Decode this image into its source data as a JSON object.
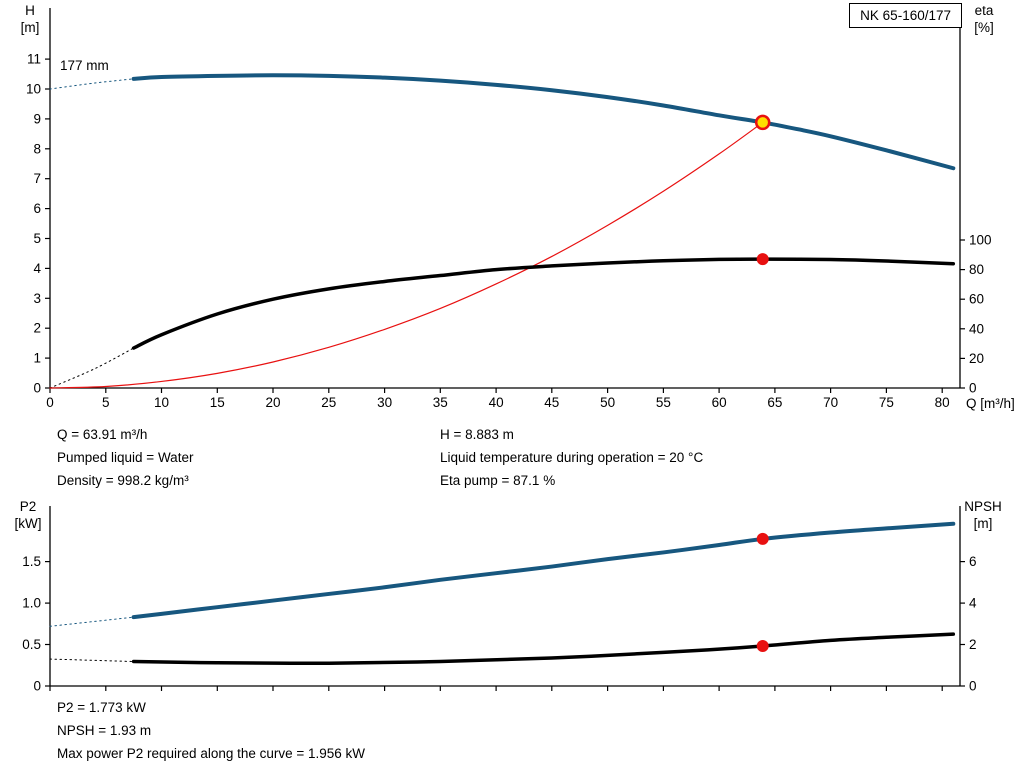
{
  "title_box": {
    "label": "NK 65-160/177"
  },
  "colors": {
    "curve_blue": "#17577f",
    "curve_black": "#000000",
    "curve_red": "#e81111",
    "duty_yellow": "#ffdf00",
    "duty_red": "#e81111",
    "axis": "#000000"
  },
  "info_top": {
    "col1": [
      "Q = 63.91 m³/h",
      "Pumped liquid = Water",
      "Density = 998.2 kg/m³"
    ],
    "col2": [
      "H = 8.883 m",
      "Liquid temperature during operation = 20 °C",
      "Eta pump = 87.1 %"
    ]
  },
  "info_bottom": [
    "P2 = 1.773 kW",
    "NPSH = 1.93 m",
    "Max power P2 required along the curve = 1.956 kW"
  ],
  "chart_data": [
    {
      "type": "line",
      "name": "head-efficiency-chart",
      "title": "NK 65-160/177",
      "annotation": "177 mm",
      "x": {
        "label": "Q [m³/h]",
        "min": 0,
        "max": 81.6,
        "ticks": [
          0,
          5,
          10,
          15,
          20,
          25,
          30,
          35,
          40,
          45,
          50,
          55,
          60,
          65,
          70,
          75,
          80
        ],
        "show_labels": true
      },
      "left": {
        "label_lines": [
          "H",
          "[m]"
        ],
        "min": 0,
        "max": 12.71,
        "ticks": [
          0,
          1,
          2,
          3,
          4,
          5,
          6,
          7,
          8,
          9,
          10,
          11
        ]
      },
      "right": {
        "label_lines": [
          "eta",
          "[%]"
        ],
        "min": 0,
        "max": 256.8,
        "ticks": [
          0,
          20,
          40,
          60,
          80,
          100
        ]
      },
      "series": [
        {
          "name": "head-curve-dashed-lead",
          "axis": "left",
          "color_key": "curve_blue",
          "width": 1,
          "dash": "1.5 3.5",
          "x": [
            0,
            4,
            7.5
          ],
          "y": [
            10.0,
            10.2,
            10.34
          ]
        },
        {
          "name": "eta-curve-dashed-lead",
          "axis": "right",
          "color_key": "curve_black",
          "width": 1,
          "dash": "1.5 3.5",
          "x": [
            0,
            4,
            7.5
          ],
          "y": [
            0,
            13,
            27
          ]
        },
        {
          "name": "system-curve",
          "axis": "left",
          "color_key": "curve_red",
          "width": 1.2,
          "x": [
            0,
            5,
            10,
            15,
            20,
            25,
            30,
            35,
            40,
            45,
            50,
            55,
            60,
            63.91
          ],
          "y": [
            0,
            0.05,
            0.22,
            0.49,
            0.87,
            1.36,
            1.96,
            2.66,
            3.48,
            4.4,
            5.44,
            6.58,
            7.83,
            8.883
          ]
        },
        {
          "name": "eta-curve",
          "axis": "right",
          "color_key": "curve_black",
          "width": 3.5,
          "x": [
            7.5,
            10,
            15,
            20,
            25,
            30,
            35,
            40,
            45,
            50,
            55,
            60,
            63.91,
            70,
            75,
            81
          ],
          "y": [
            27,
            36,
            50,
            60,
            67,
            72,
            76,
            80,
            82.5,
            84.5,
            86,
            86.9,
            87.1,
            86.8,
            85.8,
            84
          ]
        },
        {
          "name": "head-curve",
          "axis": "left",
          "color_key": "curve_blue",
          "width": 4,
          "x": [
            7.5,
            10,
            15,
            20,
            25,
            30,
            35,
            40,
            45,
            50,
            55,
            60,
            63.91,
            67,
            70,
            75,
            81
          ],
          "y": [
            10.34,
            10.4,
            10.44,
            10.46,
            10.44,
            10.38,
            10.28,
            10.14,
            9.96,
            9.73,
            9.45,
            9.12,
            8.883,
            8.66,
            8.42,
            7.95,
            7.35
          ]
        }
      ],
      "points": [
        {
          "name": "duty-point-head",
          "axis": "left",
          "x": 63.91,
          "y": 8.883,
          "r": 6.5,
          "fill_key": "duty_yellow",
          "stroke_key": "duty_red",
          "stroke_width": 2.5
        },
        {
          "name": "duty-point-eta",
          "axis": "right",
          "x": 63.91,
          "y": 87.1,
          "r": 5.5,
          "fill_key": "duty_red",
          "stroke_key": "duty_red",
          "stroke_width": 1
        }
      ]
    },
    {
      "type": "line",
      "name": "power-npsh-chart",
      "title": "",
      "annotation": "",
      "x": {
        "label": "",
        "min": 0,
        "max": 81.6,
        "ticks": [
          0,
          5,
          10,
          15,
          20,
          25,
          30,
          35,
          40,
          45,
          50,
          55,
          60,
          65,
          70,
          75,
          80
        ],
        "show_labels": false
      },
      "left": {
        "label_lines": [
          "P2",
          "[kW]"
        ],
        "min": 0,
        "max": 2.17,
        "ticks": [
          0,
          0.5,
          1,
          1.5
        ],
        "tick_labels": [
          "0",
          "0.5",
          "1.0",
          "1.5"
        ]
      },
      "right": {
        "label_lines": [
          "NPSH",
          "[m]"
        ],
        "min": 0,
        "max": 8.68,
        "ticks": [
          0,
          2,
          4,
          6
        ]
      },
      "series": [
        {
          "name": "p2-curve-dashed-lead",
          "axis": "left",
          "color_key": "curve_blue",
          "width": 1,
          "dash": "1.5 3.5",
          "x": [
            0,
            7.5
          ],
          "y": [
            0.72,
            0.83
          ]
        },
        {
          "name": "npsh-curve-dashed-lead",
          "axis": "right",
          "color_key": "curve_black",
          "width": 1,
          "dash": "1.5 3.5",
          "x": [
            0,
            7.5
          ],
          "y": [
            1.3,
            1.18
          ]
        },
        {
          "name": "npsh-curve",
          "axis": "right",
          "color_key": "curve_black",
          "width": 3.5,
          "x": [
            7.5,
            15,
            25,
            35,
            45,
            55,
            60,
            63.91,
            70,
            75,
            81
          ],
          "y": [
            1.18,
            1.12,
            1.1,
            1.18,
            1.35,
            1.62,
            1.78,
            1.93,
            2.2,
            2.35,
            2.5
          ]
        },
        {
          "name": "p2-curve",
          "axis": "left",
          "color_key": "curve_blue",
          "width": 4,
          "x": [
            7.5,
            10,
            15,
            20,
            25,
            30,
            35,
            40,
            45,
            50,
            55,
            60,
            63.91,
            70,
            75,
            81
          ],
          "y": [
            0.83,
            0.87,
            0.95,
            1.03,
            1.11,
            1.19,
            1.28,
            1.36,
            1.44,
            1.53,
            1.61,
            1.7,
            1.773,
            1.85,
            1.9,
            1.956
          ]
        }
      ],
      "points": [
        {
          "name": "duty-point-p2",
          "axis": "left",
          "x": 63.91,
          "y": 1.773,
          "r": 5.5,
          "fill_key": "duty_red",
          "stroke_key": "duty_red",
          "stroke_width": 1
        },
        {
          "name": "duty-point-npsh",
          "axis": "right",
          "x": 63.91,
          "y": 1.93,
          "r": 5.5,
          "fill_key": "duty_red",
          "stroke_key": "duty_red",
          "stroke_width": 1
        }
      ]
    }
  ]
}
